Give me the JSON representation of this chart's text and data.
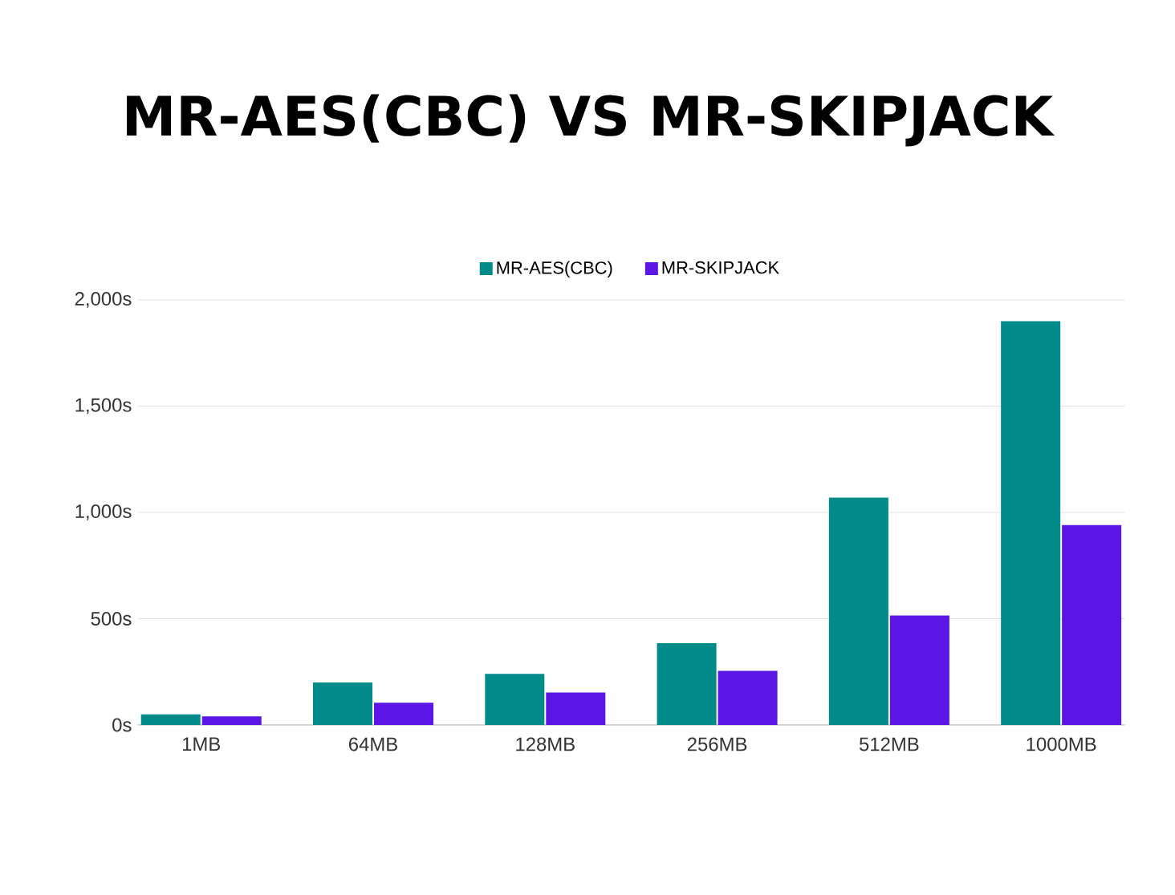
{
  "chart_data": {
    "type": "bar",
    "title": "MR-AES(CBC) VS MR-SKIPJACK",
    "categories": [
      "1MB",
      "64MB",
      "128MB",
      "256MB",
      "512MB",
      "1000MB"
    ],
    "series": [
      {
        "name": "MR-AES(CBC)",
        "color": "#008b8b",
        "values": [
          50,
          200,
          240,
          385,
          1070,
          1900
        ]
      },
      {
        "name": "MR-SKIPJACK",
        "color": "#5b16e6",
        "values": [
          40,
          105,
          153,
          255,
          515,
          940
        ]
      }
    ],
    "ylim": [
      0,
      2000
    ],
    "yticks": [
      {
        "value": 0,
        "label": "0s"
      },
      {
        "value": 500,
        "label": "500s"
      },
      {
        "value": 1000,
        "label": "1,000s"
      },
      {
        "value": 1500,
        "label": "1,500s"
      },
      {
        "value": 2000,
        "label": "2,000s"
      }
    ],
    "grid": "y",
    "legend": "top"
  }
}
